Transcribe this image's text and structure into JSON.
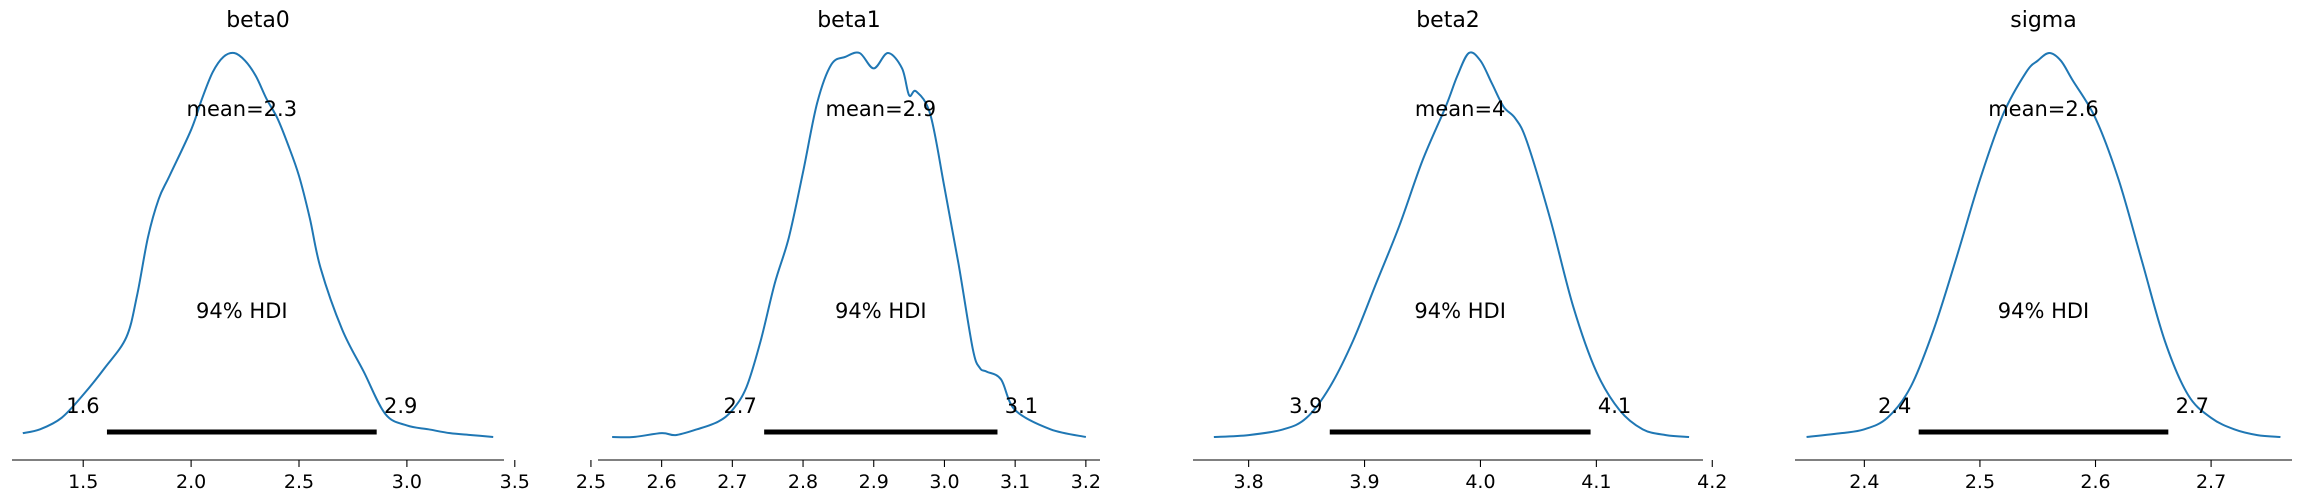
{
  "chart_data": [
    {
      "type": "line",
      "title": "beta0",
      "mean_label": "mean=2.3",
      "hdi_text": "94% HDI",
      "hdi": {
        "low": 1.61,
        "high": 2.86,
        "low_label": "1.6",
        "high_label": "2.9"
      },
      "xlim": [
        1.17,
        3.45
      ],
      "ticks": [
        1.5,
        2.0,
        2.5,
        3.0,
        3.5
      ],
      "tick_labels": [
        "1.5",
        "2.0",
        "2.5",
        "3.0",
        "3.5"
      ],
      "x": [
        1.22,
        1.3,
        1.4,
        1.5,
        1.6,
        1.7,
        1.75,
        1.8,
        1.85,
        1.9,
        2.0,
        2.05,
        2.1,
        2.15,
        2.2,
        2.25,
        2.3,
        2.35,
        2.4,
        2.45,
        2.5,
        2.55,
        2.6,
        2.7,
        2.8,
        2.9,
        3.0,
        3.1,
        3.2,
        3.3,
        3.4
      ],
      "y": [
        0.01,
        0.02,
        0.05,
        0.11,
        0.18,
        0.26,
        0.37,
        0.52,
        0.62,
        0.68,
        0.8,
        0.88,
        0.95,
        0.99,
        1.0,
        0.98,
        0.94,
        0.88,
        0.83,
        0.76,
        0.68,
        0.57,
        0.44,
        0.28,
        0.17,
        0.06,
        0.03,
        0.02,
        0.01,
        0.005,
        0.0
      ],
      "line_color": "#1f77b4"
    },
    {
      "type": "line",
      "title": "beta1",
      "mean_label": "mean=2.9",
      "hdi_text": "94% HDI",
      "hdi": {
        "low": 2.745,
        "high": 3.075,
        "low_label": "2.7",
        "high_label": "3.1"
      },
      "xlim": [
        2.51,
        3.22
      ],
      "ticks": [
        2.5,
        2.6,
        2.7,
        2.8,
        2.9,
        3.0,
        3.1,
        3.2
      ],
      "tick_labels": [
        "2.5",
        "2.6",
        "2.7",
        "2.8",
        "2.9",
        "3.0",
        "3.1",
        "3.2"
      ],
      "x": [
        2.53,
        2.56,
        2.6,
        2.62,
        2.65,
        2.68,
        2.7,
        2.72,
        2.74,
        2.76,
        2.78,
        2.8,
        2.82,
        2.84,
        2.86,
        2.88,
        2.9,
        2.92,
        2.94,
        2.95,
        2.96,
        2.98,
        3.0,
        3.02,
        3.04,
        3.05,
        3.06,
        3.08,
        3.1,
        3.15,
        3.2
      ],
      "y": [
        0.0,
        0.0,
        0.01,
        0.005,
        0.02,
        0.04,
        0.07,
        0.13,
        0.25,
        0.4,
        0.52,
        0.69,
        0.87,
        0.97,
        0.99,
        1.0,
        0.96,
        1.0,
        0.96,
        0.89,
        0.9,
        0.84,
        0.65,
        0.45,
        0.23,
        0.18,
        0.17,
        0.15,
        0.07,
        0.02,
        0.0
      ],
      "line_color": "#1f77b4"
    },
    {
      "type": "line",
      "title": "beta2",
      "mean_label": "mean=4",
      "hdi_text": "94% HDI",
      "hdi": {
        "low": 3.87,
        "high": 4.095,
        "low_label": "3.9",
        "high_label": "4.1"
      },
      "xlim": [
        3.752,
        4.192
      ],
      "ticks": [
        3.8,
        3.9,
        4.0,
        4.1,
        4.2
      ],
      "tick_labels": [
        "3.8",
        "3.9",
        "4.0",
        "4.1",
        "4.2"
      ],
      "x": [
        3.77,
        3.8,
        3.83,
        3.85,
        3.87,
        3.89,
        3.91,
        3.93,
        3.95,
        3.97,
        3.98,
        3.99,
        4.0,
        4.01,
        4.02,
        4.03,
        4.04,
        4.06,
        4.08,
        4.1,
        4.12,
        4.14,
        4.16,
        4.18
      ],
      "y": [
        0.0,
        0.005,
        0.02,
        0.05,
        0.13,
        0.25,
        0.4,
        0.55,
        0.72,
        0.86,
        0.94,
        1.0,
        0.98,
        0.92,
        0.86,
        0.83,
        0.77,
        0.57,
        0.34,
        0.17,
        0.07,
        0.02,
        0.005,
        0.0
      ],
      "line_color": "#1f77b4"
    },
    {
      "type": "line",
      "title": "sigma",
      "mean_label": "mean=2.6",
      "hdi_text": "94% HDI",
      "hdi": {
        "low": 2.447,
        "high": 2.663,
        "low_label": "2.4",
        "high_label": "2.7"
      },
      "xlim": [
        2.34,
        2.77
      ],
      "ticks": [
        2.4,
        2.5,
        2.6,
        2.7
      ],
      "tick_labels": [
        "2.4",
        "2.5",
        "2.6",
        "2.7"
      ],
      "x": [
        2.35,
        2.38,
        2.4,
        2.42,
        2.44,
        2.46,
        2.48,
        2.5,
        2.52,
        2.54,
        2.55,
        2.56,
        2.57,
        2.58,
        2.6,
        2.62,
        2.64,
        2.66,
        2.68,
        2.7,
        2.72,
        2.74,
        2.76
      ],
      "y": [
        0.0,
        0.01,
        0.02,
        0.05,
        0.13,
        0.28,
        0.47,
        0.67,
        0.84,
        0.95,
        0.98,
        1.0,
        0.98,
        0.93,
        0.83,
        0.67,
        0.46,
        0.25,
        0.11,
        0.05,
        0.02,
        0.005,
        0.0
      ],
      "line_color": "#1f77b4"
    }
  ]
}
